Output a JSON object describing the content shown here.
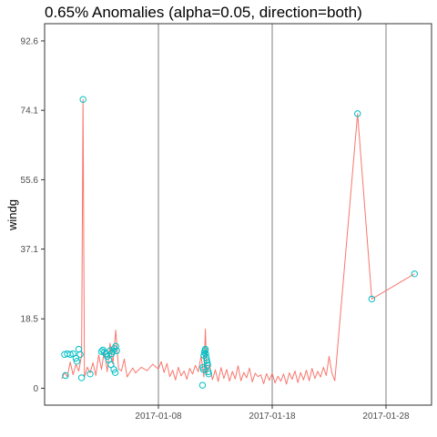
{
  "chart_data": {
    "type": "line",
    "title": "0.65% Anomalies (alpha=0.05, direction=both)",
    "xlabel": "",
    "ylabel": "windg",
    "xaxis_type": "date",
    "xlim": [
      "2016-12-29",
      "2017-02-01"
    ],
    "ylim": [
      -4.5,
      97.2
    ],
    "x_ticks": [
      "2017-01-08",
      "2017-01-18",
      "2017-01-28"
    ],
    "y_ticks": [
      0,
      18.5,
      37.1,
      55.6,
      74.1,
      92.6
    ],
    "y_tick_labels": [
      "0",
      "18.5",
      "37.1",
      "55.6",
      "74.1",
      "92.6"
    ],
    "vertical_lines": [
      "2017-01-08",
      "2017-01-18",
      "2017-01-28"
    ],
    "grid": false,
    "legend": "none",
    "colors": {
      "line": "#f8766d",
      "anomaly": "#00bfc4",
      "vline": "#7f7f7f",
      "panel_border": "#333333"
    },
    "series": [
      {
        "role": "observed",
        "points": [
          [
            "2016-12-30 12:00",
            2.5
          ],
          [
            "2016-12-30 18:00",
            4.2
          ],
          [
            "2016-12-31 00:00",
            3.1
          ],
          [
            "2016-12-31 06:00",
            7.0
          ],
          [
            "2016-12-31 12:00",
            3.6
          ],
          [
            "2016-12-31 18:00",
            6.4
          ],
          [
            "2017-01-01 00:00",
            4.6
          ],
          [
            "2017-01-01 06:00",
            8.8
          ],
          [
            "2017-01-01 09:00",
            77.0
          ],
          [
            "2017-01-01 12:00",
            3.0
          ],
          [
            "2017-01-01 18:00",
            5.6
          ],
          [
            "2017-01-02 00:00",
            4.1
          ],
          [
            "2017-01-02 06:00",
            6.8
          ],
          [
            "2017-01-02 12:00",
            3.4
          ],
          [
            "2017-01-02 18:00",
            8.9
          ],
          [
            "2017-01-03 00:00",
            5.0
          ],
          [
            "2017-01-03 06:00",
            10.2
          ],
          [
            "2017-01-03 12:00",
            4.4
          ],
          [
            "2017-01-03 18:00",
            12.0
          ],
          [
            "2017-01-04 00:00",
            6.5
          ],
          [
            "2017-01-04 06:00",
            15.5
          ],
          [
            "2017-01-04 12:00",
            5.2
          ],
          [
            "2017-01-04 18:00",
            4.6
          ],
          [
            "2017-01-05 00:00",
            7.8
          ],
          [
            "2017-01-05 06:00",
            3.0
          ],
          [
            "2017-01-05 12:00",
            4.3
          ],
          [
            "2017-01-05 18:00",
            5.4
          ],
          [
            "2017-01-06 00:00",
            4.1
          ],
          [
            "2017-01-06 12:00",
            5.6
          ],
          [
            "2017-01-07 00:00",
            4.7
          ],
          [
            "2017-01-07 12:00",
            6.4
          ],
          [
            "2017-01-08 00:00",
            5.1
          ],
          [
            "2017-01-08 06:00",
            7.1
          ],
          [
            "2017-01-08 12:00",
            4.2
          ],
          [
            "2017-01-08 18:00",
            6.6
          ],
          [
            "2017-01-09 00:00",
            3.1
          ],
          [
            "2017-01-09 06:00",
            4.8
          ],
          [
            "2017-01-09 12:00",
            2.2
          ],
          [
            "2017-01-09 18:00",
            5.6
          ],
          [
            "2017-01-10 00:00",
            3.3
          ],
          [
            "2017-01-10 06:00",
            4.6
          ],
          [
            "2017-01-10 12:00",
            2.4
          ],
          [
            "2017-01-10 18:00",
            5.3
          ],
          [
            "2017-01-11 00:00",
            3.8
          ],
          [
            "2017-01-11 06:00",
            6.1
          ],
          [
            "2017-01-11 12:00",
            4.4
          ],
          [
            "2017-01-11 18:00",
            8.6
          ],
          [
            "2017-01-12 00:00",
            3.0
          ],
          [
            "2017-01-12 03:00",
            15.8
          ],
          [
            "2017-01-12 06:00",
            4.0
          ],
          [
            "2017-01-12 12:00",
            6.2
          ],
          [
            "2017-01-12 18:00",
            2.3
          ],
          [
            "2017-01-13 00:00",
            4.9
          ],
          [
            "2017-01-13 06:00",
            1.8
          ],
          [
            "2017-01-13 12:00",
            5.5
          ],
          [
            "2017-01-13 18:00",
            2.6
          ],
          [
            "2017-01-14 00:00",
            5.0
          ],
          [
            "2017-01-14 06:00",
            1.9
          ],
          [
            "2017-01-14 12:00",
            4.5
          ],
          [
            "2017-01-14 18:00",
            2.5
          ],
          [
            "2017-01-15 00:00",
            6.0
          ],
          [
            "2017-01-15 06:00",
            2.0
          ],
          [
            "2017-01-15 12:00",
            4.2
          ],
          [
            "2017-01-15 18:00",
            2.8
          ],
          [
            "2017-01-16 00:00",
            5.4
          ],
          [
            "2017-01-16 06:00",
            1.7
          ],
          [
            "2017-01-16 12:00",
            4.0
          ],
          [
            "2017-01-16 18:00",
            3.1
          ],
          [
            "2017-01-17 00:00",
            3.6
          ],
          [
            "2017-01-17 06:00",
            1.2
          ],
          [
            "2017-01-17 12:00",
            3.9
          ],
          [
            "2017-01-17 18:00",
            2.1
          ],
          [
            "2017-01-18 00:00",
            4.0
          ],
          [
            "2017-01-18 06:00",
            1.4
          ],
          [
            "2017-01-18 12:00",
            3.2
          ],
          [
            "2017-01-18 18:00",
            1.9
          ],
          [
            "2017-01-19 00:00",
            3.8
          ],
          [
            "2017-01-19 06:00",
            1.1
          ],
          [
            "2017-01-19 12:00",
            4.1
          ],
          [
            "2017-01-19 18:00",
            2.4
          ],
          [
            "2017-01-20 00:00",
            4.6
          ],
          [
            "2017-01-20 06:00",
            1.5
          ],
          [
            "2017-01-20 12:00",
            4.2
          ],
          [
            "2017-01-20 18:00",
            2.2
          ],
          [
            "2017-01-21 00:00",
            4.8
          ],
          [
            "2017-01-21 06:00",
            2.0
          ],
          [
            "2017-01-21 12:00",
            5.3
          ],
          [
            "2017-01-21 18:00",
            2.6
          ],
          [
            "2017-01-22 00:00",
            4.5
          ],
          [
            "2017-01-22 06:00",
            3.0
          ],
          [
            "2017-01-22 12:00",
            5.6
          ],
          [
            "2017-01-22 18:00",
            3.4
          ],
          [
            "2017-01-23 00:00",
            8.5
          ],
          [
            "2017-01-23 06:00",
            4.0
          ],
          [
            "2017-01-23 12:00",
            2.0
          ],
          [
            "2017-01-25 12:00",
            73.2
          ],
          [
            "2017-01-26 18:00",
            23.8
          ],
          [
            "2017-01-30 12:00",
            30.5
          ]
        ]
      },
      {
        "role": "anomalies",
        "points": [
          [
            "2017-01-01 09:00",
            77.0
          ],
          [
            "2016-12-30 18:00",
            9.0
          ],
          [
            "2016-12-31 00:00",
            9.2
          ],
          [
            "2016-12-31 06:00",
            9.0
          ],
          [
            "2016-12-31 12:00",
            9.2
          ],
          [
            "2016-12-31 18:00",
            8.0
          ],
          [
            "2016-12-31 20:00",
            7.2
          ],
          [
            "2017-01-01 00:00",
            10.4
          ],
          [
            "2017-01-01 03:00",
            9.0
          ],
          [
            "2017-01-01 06:00",
            2.8
          ],
          [
            "2016-12-30 20:00",
            3.4
          ],
          [
            "2017-01-02 00:00",
            3.8
          ],
          [
            "2017-01-03 00:00",
            9.8
          ],
          [
            "2017-01-03 03:00",
            10.2
          ],
          [
            "2017-01-03 06:00",
            9.6
          ],
          [
            "2017-01-03 09:00",
            9.2
          ],
          [
            "2017-01-03 12:00",
            8.5
          ],
          [
            "2017-01-03 15:00",
            7.6
          ],
          [
            "2017-01-03 18:00",
            10.0
          ],
          [
            "2017-01-03 21:00",
            9.2
          ],
          [
            "2017-01-04 00:00",
            9.8
          ],
          [
            "2017-01-04 03:00",
            10.6
          ],
          [
            "2017-01-04 06:00",
            11.2
          ],
          [
            "2017-01-04 08:00",
            10.0
          ],
          [
            "2017-01-03 20:00",
            6.3
          ],
          [
            "2017-01-04 02:00",
            5.0
          ],
          [
            "2017-01-04 05:00",
            4.2
          ],
          [
            "2017-01-12 00:00",
            8.8
          ],
          [
            "2017-01-12 01:00",
            9.5
          ],
          [
            "2017-01-12 02:00",
            10.0
          ],
          [
            "2017-01-12 03:00",
            10.4
          ],
          [
            "2017-01-12 04:00",
            9.2
          ],
          [
            "2017-01-12 05:00",
            8.2
          ],
          [
            "2017-01-12 06:00",
            7.4
          ],
          [
            "2017-01-12 07:00",
            6.8
          ],
          [
            "2017-01-12 08:00",
            6.2
          ],
          [
            "2017-01-11 22:00",
            5.6
          ],
          [
            "2017-01-11 23:00",
            5.0
          ],
          [
            "2017-01-12 09:00",
            4.4
          ],
          [
            "2017-01-12 10:00",
            3.8
          ],
          [
            "2017-01-11 21:00",
            0.8
          ],
          [
            "2017-01-25 12:00",
            73.2
          ],
          [
            "2017-01-26 18:00",
            23.8
          ],
          [
            "2017-01-30 12:00",
            30.5
          ]
        ]
      }
    ]
  }
}
